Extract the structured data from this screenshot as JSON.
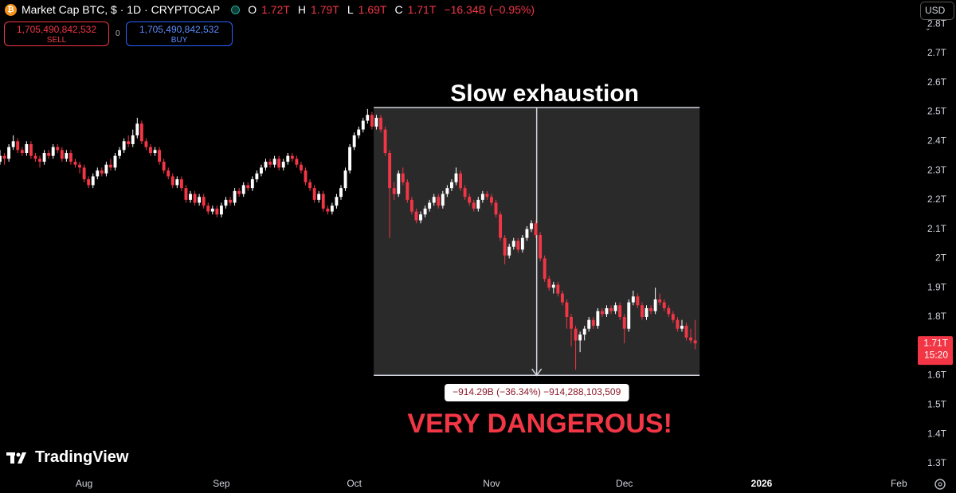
{
  "header": {
    "symbol": "Market Cap BTC, $ · 1D · CRYPTOCAP",
    "ohlc": [
      {
        "key": "O",
        "value": "1.72T"
      },
      {
        "key": "H",
        "value": "1.79T"
      },
      {
        "key": "L",
        "value": "1.69T"
      },
      {
        "key": "C",
        "value": "1.71T"
      }
    ],
    "change": "−16.34B (−0.95%)"
  },
  "trade": {
    "sell_price": "1,705,490,842,532",
    "sell": "SELL",
    "spread": "0",
    "buy_price": "1,705,490,842,532",
    "buy": "BUY"
  },
  "currency": "USD",
  "price_label": {
    "price": "1.71T",
    "time": "15:20"
  },
  "brand": "TradingView",
  "chart_data": {
    "type": "candlestick",
    "up_color": "#ffffff",
    "down_color": "#f23645",
    "xlim": [
      0,
      206
    ],
    "ylim": [
      1.259,
      2.882
    ],
    "xticks": [
      {
        "value": 19,
        "label": "Aug"
      },
      {
        "value": 50,
        "label": "Sep"
      },
      {
        "value": 80,
        "label": "Oct"
      },
      {
        "value": 111,
        "label": "Nov"
      },
      {
        "value": 141,
        "label": "Dec"
      },
      {
        "value": 172,
        "label": "2026"
      },
      {
        "value": 203,
        "label": "Feb"
      }
    ],
    "yticks": [
      {
        "value": 1.3,
        "label": "1.3T"
      },
      {
        "value": 1.4,
        "label": "1.4T"
      },
      {
        "value": 1.5,
        "label": "1.5T"
      },
      {
        "value": 1.6,
        "label": "1.6T"
      },
      {
        "value": 1.7,
        "label": "1.7T"
      },
      {
        "value": 1.8,
        "label": "1.8T"
      },
      {
        "value": 1.9,
        "label": "1.9T"
      },
      {
        "value": 2.0,
        "label": "2T"
      },
      {
        "value": 2.1,
        "label": "2.1T"
      },
      {
        "value": 2.2,
        "label": "2.2T"
      },
      {
        "value": 2.3,
        "label": "2.3T"
      },
      {
        "value": 2.4,
        "label": "2.4T"
      },
      {
        "value": 2.5,
        "label": "2.5T"
      },
      {
        "value": 2.6,
        "label": "2.6T"
      },
      {
        "value": 2.7,
        "label": "2.7T"
      },
      {
        "value": 2.8,
        "label": "2.8T"
      }
    ],
    "measure": {
      "from": 84.4,
      "to": 158,
      "top": 2.515,
      "bottom": 1.601
    },
    "annotations": {
      "title": "Slow exhaustion",
      "measure_label": "−914.29B (−36.34%) −914,288,103,509",
      "warning": "VERY DANGEROUS!"
    },
    "ohlc": [
      [
        2.33,
        2.37,
        2.32,
        2.35
      ],
      [
        2.35,
        2.36,
        2.32,
        2.34
      ],
      [
        2.34,
        2.39,
        2.33,
        2.38
      ],
      [
        2.38,
        2.42,
        2.37,
        2.4
      ],
      [
        2.4,
        2.41,
        2.36,
        2.37
      ],
      [
        2.37,
        2.38,
        2.35,
        2.36
      ],
      [
        2.36,
        2.4,
        2.35,
        2.39
      ],
      [
        2.39,
        2.4,
        2.34,
        2.35
      ],
      [
        2.35,
        2.36,
        2.33,
        2.34
      ],
      [
        2.34,
        2.35,
        2.31,
        2.33
      ],
      [
        2.33,
        2.37,
        2.32,
        2.36
      ],
      [
        2.36,
        2.37,
        2.34,
        2.35
      ],
      [
        2.35,
        2.39,
        2.34,
        2.38
      ],
      [
        2.38,
        2.39,
        2.36,
        2.37
      ],
      [
        2.37,
        2.38,
        2.33,
        2.34
      ],
      [
        2.34,
        2.37,
        2.33,
        2.36
      ],
      [
        2.36,
        2.37,
        2.32,
        2.33
      ],
      [
        2.33,
        2.34,
        2.31,
        2.32
      ],
      [
        2.32,
        2.33,
        2.29,
        2.31
      ],
      [
        2.31,
        2.32,
        2.26,
        2.27
      ],
      [
        2.27,
        2.28,
        2.24,
        2.25
      ],
      [
        2.25,
        2.29,
        2.24,
        2.28
      ],
      [
        2.28,
        2.31,
        2.27,
        2.3
      ],
      [
        2.3,
        2.31,
        2.28,
        2.29
      ],
      [
        2.29,
        2.33,
        2.28,
        2.32
      ],
      [
        2.32,
        2.34,
        2.3,
        2.31
      ],
      [
        2.31,
        2.36,
        2.3,
        2.35
      ],
      [
        2.35,
        2.38,
        2.34,
        2.37
      ],
      [
        2.37,
        2.41,
        2.36,
        2.4
      ],
      [
        2.4,
        2.42,
        2.38,
        2.39
      ],
      [
        2.39,
        2.44,
        2.38,
        2.42
      ],
      [
        2.42,
        2.48,
        2.41,
        2.46
      ],
      [
        2.46,
        2.47,
        2.39,
        2.4
      ],
      [
        2.4,
        2.41,
        2.37,
        2.38
      ],
      [
        2.38,
        2.39,
        2.35,
        2.36
      ],
      [
        2.36,
        2.38,
        2.35,
        2.37
      ],
      [
        2.37,
        2.38,
        2.32,
        2.33
      ],
      [
        2.33,
        2.34,
        2.29,
        2.3
      ],
      [
        2.3,
        2.31,
        2.27,
        2.28
      ],
      [
        2.28,
        2.29,
        2.24,
        2.25
      ],
      [
        2.25,
        2.28,
        2.24,
        2.27
      ],
      [
        2.27,
        2.28,
        2.23,
        2.24
      ],
      [
        2.24,
        2.25,
        2.19,
        2.2
      ],
      [
        2.2,
        2.23,
        2.19,
        2.22
      ],
      [
        2.22,
        2.23,
        2.18,
        2.19
      ],
      [
        2.19,
        2.22,
        2.18,
        2.21
      ],
      [
        2.21,
        2.22,
        2.17,
        2.18
      ],
      [
        2.18,
        2.19,
        2.15,
        2.16
      ],
      [
        2.16,
        2.18,
        2.15,
        2.17
      ],
      [
        2.17,
        2.18,
        2.14,
        2.15
      ],
      [
        2.15,
        2.19,
        2.14,
        2.18
      ],
      [
        2.18,
        2.21,
        2.17,
        2.2
      ],
      [
        2.2,
        2.21,
        2.18,
        2.19
      ],
      [
        2.19,
        2.24,
        2.18,
        2.23
      ],
      [
        2.23,
        2.24,
        2.21,
        2.22
      ],
      [
        2.22,
        2.26,
        2.21,
        2.25
      ],
      [
        2.25,
        2.26,
        2.23,
        2.24
      ],
      [
        2.24,
        2.28,
        2.23,
        2.27
      ],
      [
        2.27,
        2.3,
        2.26,
        2.29
      ],
      [
        2.29,
        2.32,
        2.28,
        2.31
      ],
      [
        2.31,
        2.34,
        2.3,
        2.33
      ],
      [
        2.33,
        2.34,
        2.31,
        2.32
      ],
      [
        2.32,
        2.35,
        2.31,
        2.34
      ],
      [
        2.34,
        2.35,
        2.3,
        2.31
      ],
      [
        2.31,
        2.34,
        2.3,
        2.33
      ],
      [
        2.33,
        2.36,
        2.32,
        2.35
      ],
      [
        2.35,
        2.36,
        2.33,
        2.34
      ],
      [
        2.34,
        2.35,
        2.31,
        2.32
      ],
      [
        2.32,
        2.33,
        2.29,
        2.3
      ],
      [
        2.3,
        2.31,
        2.25,
        2.26
      ],
      [
        2.26,
        2.27,
        2.23,
        2.24
      ],
      [
        2.24,
        2.25,
        2.19,
        2.2
      ],
      [
        2.2,
        2.23,
        2.19,
        2.22
      ],
      [
        2.22,
        2.23,
        2.16,
        2.17
      ],
      [
        2.17,
        2.18,
        2.15,
        2.16
      ],
      [
        2.16,
        2.19,
        2.15,
        2.18
      ],
      [
        2.18,
        2.22,
        2.17,
        2.21
      ],
      [
        2.21,
        2.25,
        2.2,
        2.24
      ],
      [
        2.24,
        2.31,
        2.23,
        2.3
      ],
      [
        2.3,
        2.39,
        2.29,
        2.38
      ],
      [
        2.38,
        2.43,
        2.37,
        2.42
      ],
      [
        2.42,
        2.45,
        2.41,
        2.44
      ],
      [
        2.44,
        2.48,
        2.43,
        2.47
      ],
      [
        2.47,
        2.51,
        2.46,
        2.49
      ],
      [
        2.49,
        2.5,
        2.44,
        2.45
      ],
      [
        2.45,
        2.49,
        2.44,
        2.48
      ],
      [
        2.48,
        2.49,
        2.43,
        2.44
      ],
      [
        2.44,
        2.45,
        2.35,
        2.36
      ],
      [
        2.36,
        2.37,
        2.07,
        2.24
      ],
      [
        2.24,
        2.26,
        2.2,
        2.22
      ],
      [
        2.22,
        2.3,
        2.21,
        2.29
      ],
      [
        2.29,
        2.31,
        2.25,
        2.26
      ],
      [
        2.26,
        2.27,
        2.19,
        2.2
      ],
      [
        2.2,
        2.21,
        2.15,
        2.16
      ],
      [
        2.16,
        2.17,
        2.12,
        2.13
      ],
      [
        2.13,
        2.16,
        2.12,
        2.15
      ],
      [
        2.15,
        2.18,
        2.14,
        2.17
      ],
      [
        2.17,
        2.2,
        2.16,
        2.19
      ],
      [
        2.19,
        2.22,
        2.18,
        2.21
      ],
      [
        2.21,
        2.22,
        2.17,
        2.18
      ],
      [
        2.18,
        2.23,
        2.17,
        2.22
      ],
      [
        2.22,
        2.25,
        2.21,
        2.24
      ],
      [
        2.24,
        2.27,
        2.23,
        2.26
      ],
      [
        2.26,
        2.31,
        2.25,
        2.29
      ],
      [
        2.29,
        2.3,
        2.23,
        2.24
      ],
      [
        2.24,
        2.25,
        2.2,
        2.21
      ],
      [
        2.21,
        2.22,
        2.18,
        2.19
      ],
      [
        2.19,
        2.2,
        2.16,
        2.17
      ],
      [
        2.17,
        2.21,
        2.16,
        2.2
      ],
      [
        2.2,
        2.23,
        2.19,
        2.22
      ],
      [
        2.22,
        2.23,
        2.2,
        2.21
      ],
      [
        2.21,
        2.22,
        2.18,
        2.19
      ],
      [
        2.19,
        2.2,
        2.14,
        2.15
      ],
      [
        2.15,
        2.16,
        2.06,
        2.07
      ],
      [
        2.07,
        2.08,
        1.98,
        2.01
      ],
      [
        2.01,
        2.05,
        2.0,
        2.04
      ],
      [
        2.04,
        2.07,
        2.03,
        2.06
      ],
      [
        2.06,
        2.07,
        2.02,
        2.03
      ],
      [
        2.03,
        2.08,
        2.02,
        2.07
      ],
      [
        2.07,
        2.11,
        2.06,
        2.1
      ],
      [
        2.1,
        2.13,
        2.09,
        2.12
      ],
      [
        2.12,
        2.13,
        2.07,
        2.08
      ],
      [
        2.08,
        2.09,
        1.99,
        2.0
      ],
      [
        2.0,
        2.01,
        1.92,
        1.93
      ],
      [
        1.93,
        1.94,
        1.89,
        1.9
      ],
      [
        1.9,
        1.92,
        1.88,
        1.91
      ],
      [
        1.91,
        1.92,
        1.87,
        1.88
      ],
      [
        1.88,
        1.89,
        1.84,
        1.85
      ],
      [
        1.85,
        1.86,
        1.76,
        1.8
      ],
      [
        1.8,
        1.81,
        1.7,
        1.76
      ],
      [
        1.76,
        1.77,
        1.62,
        1.72
      ],
      [
        1.72,
        1.75,
        1.68,
        1.74
      ],
      [
        1.74,
        1.77,
        1.72,
        1.76
      ],
      [
        1.76,
        1.8,
        1.75,
        1.79
      ],
      [
        1.79,
        1.8,
        1.76,
        1.77
      ],
      [
        1.77,
        1.83,
        1.76,
        1.82
      ],
      [
        1.82,
        1.83,
        1.8,
        1.81
      ],
      [
        1.81,
        1.84,
        1.8,
        1.83
      ],
      [
        1.83,
        1.84,
        1.81,
        1.82
      ],
      [
        1.82,
        1.85,
        1.81,
        1.84
      ],
      [
        1.84,
        1.85,
        1.79,
        1.8
      ],
      [
        1.8,
        1.81,
        1.71,
        1.76
      ],
      [
        1.76,
        1.86,
        1.75,
        1.85
      ],
      [
        1.85,
        1.89,
        1.84,
        1.87
      ],
      [
        1.87,
        1.88,
        1.83,
        1.84
      ],
      [
        1.84,
        1.85,
        1.79,
        1.8
      ],
      [
        1.8,
        1.84,
        1.79,
        1.83
      ],
      [
        1.83,
        1.84,
        1.81,
        1.82
      ],
      [
        1.82,
        1.9,
        1.81,
        1.86
      ],
      [
        1.86,
        1.88,
        1.84,
        1.85
      ],
      [
        1.85,
        1.86,
        1.82,
        1.83
      ],
      [
        1.83,
        1.84,
        1.8,
        1.81
      ],
      [
        1.81,
        1.82,
        1.78,
        1.79
      ],
      [
        1.79,
        1.8,
        1.75,
        1.76
      ],
      [
        1.76,
        1.79,
        1.75,
        1.77
      ],
      [
        1.77,
        1.78,
        1.72,
        1.73
      ],
      [
        1.73,
        1.76,
        1.71,
        1.72
      ],
      [
        1.72,
        1.79,
        1.69,
        1.71
      ]
    ]
  }
}
